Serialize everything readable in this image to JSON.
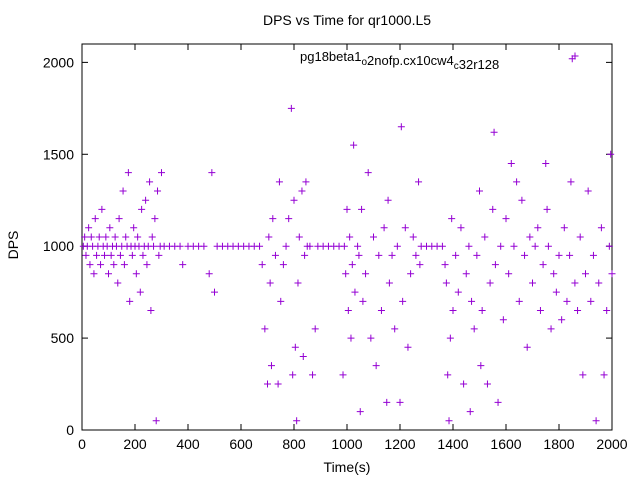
{
  "chart_data": {
    "type": "scatter",
    "title": "DPS vs Time for qr1000.L5",
    "xlabel": "Time(s)",
    "ylabel": "DPS",
    "xlim": [
      0,
      2000
    ],
    "ylim": [
      0,
      2100
    ],
    "xticks": [
      0,
      200,
      400,
      600,
      800,
      1000,
      1200,
      1400,
      1600,
      1800,
      2000
    ],
    "yticks": [
      0,
      500,
      1000,
      1500,
      2000
    ],
    "grid": false,
    "legend_position": "top-right",
    "marker": "plus",
    "series": [
      {
        "name": "pg18beta1_o2nofp.cx10cw4_c32r128",
        "legend_parts": [
          {
            "text": "pg18beta1",
            "sub": false
          },
          {
            "text": "o",
            "sub": true
          },
          {
            "text": "2nofp.cx10cw4",
            "sub": false
          },
          {
            "text": "c",
            "sub": true
          },
          {
            "text": "32r128",
            "sub": false
          }
        ],
        "color": "#9400d3",
        "points": [
          [
            5,
            1000
          ],
          [
            10,
            1050
          ],
          [
            15,
            950
          ],
          [
            20,
            1000
          ],
          [
            25,
            1100
          ],
          [
            30,
            900
          ],
          [
            35,
            1050
          ],
          [
            40,
            1000
          ],
          [
            45,
            850
          ],
          [
            50,
            1150
          ],
          [
            55,
            950
          ],
          [
            60,
            1000
          ],
          [
            65,
            1050
          ],
          [
            70,
            900
          ],
          [
            75,
            1200
          ],
          [
            80,
            1000
          ],
          [
            85,
            950
          ],
          [
            90,
            1050
          ],
          [
            95,
            1000
          ],
          [
            100,
            850
          ],
          [
            105,
            1100
          ],
          [
            110,
            950
          ],
          [
            115,
            1000
          ],
          [
            120,
            900
          ],
          [
            125,
            1050
          ],
          [
            130,
            1000
          ],
          [
            135,
            800
          ],
          [
            140,
            1150
          ],
          [
            145,
            950
          ],
          [
            150,
            1000
          ],
          [
            155,
            1300
          ],
          [
            160,
            900
          ],
          [
            165,
            1050
          ],
          [
            170,
            1000
          ],
          [
            175,
            1400
          ],
          [
            180,
            700
          ],
          [
            185,
            1000
          ],
          [
            190,
            950
          ],
          [
            195,
            1100
          ],
          [
            200,
            1000
          ],
          [
            205,
            850
          ],
          [
            210,
            1050
          ],
          [
            215,
            1000
          ],
          [
            220,
            750
          ],
          [
            225,
            1200
          ],
          [
            230,
            950
          ],
          [
            235,
            1000
          ],
          [
            240,
            1250
          ],
          [
            245,
            900
          ],
          [
            250,
            1000
          ],
          [
            255,
            1350
          ],
          [
            260,
            650
          ],
          [
            265,
            1050
          ],
          [
            270,
            1000
          ],
          [
            275,
            1150
          ],
          [
            280,
            50
          ],
          [
            285,
            1300
          ],
          [
            290,
            950
          ],
          [
            295,
            1000
          ],
          [
            300,
            1400
          ],
          [
            310,
            1000
          ],
          [
            330,
            1000
          ],
          [
            350,
            1000
          ],
          [
            370,
            1000
          ],
          [
            380,
            900
          ],
          [
            400,
            1000
          ],
          [
            420,
            1000
          ],
          [
            440,
            1000
          ],
          [
            460,
            1000
          ],
          [
            480,
            850
          ],
          [
            490,
            1400
          ],
          [
            500,
            750
          ],
          [
            510,
            1000
          ],
          [
            530,
            1000
          ],
          [
            550,
            1000
          ],
          [
            570,
            1000
          ],
          [
            590,
            1000
          ],
          [
            610,
            1000
          ],
          [
            630,
            1000
          ],
          [
            650,
            1000
          ],
          [
            670,
            1000
          ],
          [
            680,
            900
          ],
          [
            690,
            550
          ],
          [
            700,
            250
          ],
          [
            705,
            1050
          ],
          [
            710,
            800
          ],
          [
            715,
            350
          ],
          [
            720,
            1150
          ],
          [
            730,
            950
          ],
          [
            740,
            250
          ],
          [
            745,
            1350
          ],
          [
            750,
            700
          ],
          [
            760,
            900
          ],
          [
            770,
            1000
          ],
          [
            780,
            1150
          ],
          [
            790,
            1750
          ],
          [
            795,
            300
          ],
          [
            800,
            1250
          ],
          [
            805,
            450
          ],
          [
            810,
            50
          ],
          [
            815,
            800
          ],
          [
            820,
            1050
          ],
          [
            830,
            1300
          ],
          [
            835,
            400
          ],
          [
            840,
            950
          ],
          [
            845,
            1350
          ],
          [
            850,
            1000
          ],
          [
            860,
            1000
          ],
          [
            870,
            300
          ],
          [
            880,
            550
          ],
          [
            890,
            1000
          ],
          [
            910,
            1000
          ],
          [
            930,
            1000
          ],
          [
            950,
            1000
          ],
          [
            970,
            1000
          ],
          [
            985,
            300
          ],
          [
            990,
            1000
          ],
          [
            995,
            850
          ],
          [
            1000,
            1200
          ],
          [
            1005,
            650
          ],
          [
            1010,
            1050
          ],
          [
            1015,
            500
          ],
          [
            1020,
            900
          ],
          [
            1025,
            1550
          ],
          [
            1030,
            750
          ],
          [
            1040,
            1000
          ],
          [
            1045,
            950
          ],
          [
            1050,
            100
          ],
          [
            1055,
            1200
          ],
          [
            1060,
            700
          ],
          [
            1070,
            850
          ],
          [
            1080,
            1400
          ],
          [
            1090,
            500
          ],
          [
            1100,
            1050
          ],
          [
            1110,
            350
          ],
          [
            1120,
            950
          ],
          [
            1130,
            650
          ],
          [
            1140,
            1100
          ],
          [
            1150,
            150
          ],
          [
            1155,
            1250
          ],
          [
            1160,
            800
          ],
          [
            1170,
            950
          ],
          [
            1180,
            550
          ],
          [
            1190,
            1000
          ],
          [
            1200,
            150
          ],
          [
            1205,
            1650
          ],
          [
            1210,
            700
          ],
          [
            1220,
            1100
          ],
          [
            1230,
            450
          ],
          [
            1240,
            850
          ],
          [
            1250,
            1050
          ],
          [
            1260,
            950
          ],
          [
            1270,
            1350
          ],
          [
            1275,
            900
          ],
          [
            1280,
            1000
          ],
          [
            1300,
            1000
          ],
          [
            1320,
            1000
          ],
          [
            1340,
            1000
          ],
          [
            1360,
            1000
          ],
          [
            1370,
            900
          ],
          [
            1375,
            800
          ],
          [
            1380,
            300
          ],
          [
            1385,
            50
          ],
          [
            1390,
            500
          ],
          [
            1395,
            1150
          ],
          [
            1400,
            650
          ],
          [
            1410,
            950
          ],
          [
            1420,
            750
          ],
          [
            1430,
            1100
          ],
          [
            1440,
            250
          ],
          [
            1450,
            850
          ],
          [
            1460,
            1000
          ],
          [
            1465,
            100
          ],
          [
            1470,
            700
          ],
          [
            1480,
            550
          ],
          [
            1490,
            950
          ],
          [
            1500,
            1300
          ],
          [
            1505,
            350
          ],
          [
            1510,
            650
          ],
          [
            1520,
            1050
          ],
          [
            1530,
            250
          ],
          [
            1540,
            800
          ],
          [
            1550,
            1200
          ],
          [
            1555,
            1620
          ],
          [
            1560,
            900
          ],
          [
            1570,
            150
          ],
          [
            1580,
            1000
          ],
          [
            1590,
            600
          ],
          [
            1600,
            1150
          ],
          [
            1610,
            850
          ],
          [
            1620,
            1450
          ],
          [
            1630,
            1000
          ],
          [
            1640,
            1350
          ],
          [
            1650,
            700
          ],
          [
            1660,
            1250
          ],
          [
            1670,
            950
          ],
          [
            1680,
            450
          ],
          [
            1690,
            1050
          ],
          [
            1700,
            800
          ],
          [
            1710,
            1000
          ],
          [
            1720,
            1100
          ],
          [
            1730,
            650
          ],
          [
            1740,
            900
          ],
          [
            1750,
            1450
          ],
          [
            1755,
            1200
          ],
          [
            1760,
            1000
          ],
          [
            1770,
            550
          ],
          [
            1780,
            850
          ],
          [
            1790,
            750
          ],
          [
            1800,
            950
          ],
          [
            1810,
            600
          ],
          [
            1820,
            1100
          ],
          [
            1830,
            700
          ],
          [
            1840,
            950
          ],
          [
            1845,
            1350
          ],
          [
            1850,
            2020
          ],
          [
            1860,
            800
          ],
          [
            1870,
            650
          ],
          [
            1880,
            1050
          ],
          [
            1890,
            300
          ],
          [
            1900,
            850
          ],
          [
            1910,
            1300
          ],
          [
            1920,
            700
          ],
          [
            1930,
            950
          ],
          [
            1940,
            50
          ],
          [
            1950,
            800
          ],
          [
            1960,
            1100
          ],
          [
            1970,
            300
          ],
          [
            1980,
            650
          ],
          [
            1990,
            1000
          ],
          [
            1995,
            1500
          ],
          [
            2000,
            850
          ]
        ]
      }
    ]
  }
}
